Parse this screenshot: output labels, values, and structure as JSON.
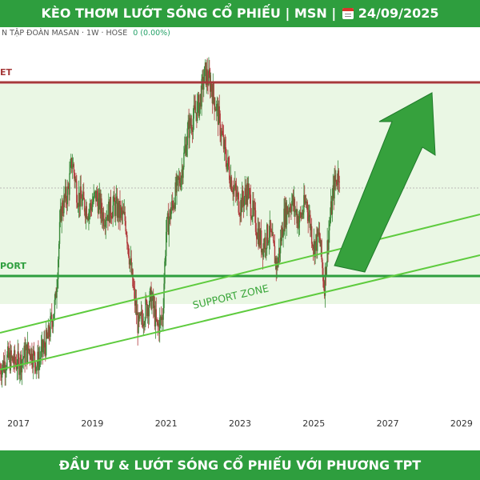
{
  "header": {
    "title": "KÈO THƠM LƯỚT SÓNG CỔ PHIẾU | MSN |",
    "date": "24/09/2025"
  },
  "symbol_info": {
    "name": "N TẬP ĐOÀN MASAN · 1W · HOSE",
    "change": "0 (0.00%)"
  },
  "footer": {
    "slogan": "ĐẦU TƯ & LƯỚT SÓNG CỔ PHIẾU VỚI PHƯƠNG TPT"
  },
  "colors": {
    "banner": "#2e9e3e",
    "zone_fill": "#eaf7e4",
    "resistance": "#a63a3a",
    "support": "#2e9e3e",
    "channel": "#5ecb3e",
    "arrow": "#36a13d",
    "candle_up": "#3a8a3a",
    "candle_down": "#b0393b"
  },
  "chart_data": {
    "type": "candlestick",
    "instrument": "MSN",
    "timeframe": "1W",
    "x_ticks": [
      "2017",
      "2019",
      "2021",
      "2023",
      "2025",
      "2027",
      "2029"
    ],
    "x_range": [
      2016.5,
      2029.5
    ],
    "y_range": [
      30,
      180
    ],
    "price_path": [
      [
        2016.5,
        46
      ],
      [
        2016.7,
        50
      ],
      [
        2017.0,
        48
      ],
      [
        2017.3,
        54
      ],
      [
        2017.5,
        48
      ],
      [
        2017.8,
        58
      ],
      [
        2018.0,
        72
      ],
      [
        2018.15,
        108
      ],
      [
        2018.35,
        116
      ],
      [
        2018.45,
        128
      ],
      [
        2018.6,
        114
      ],
      [
        2018.9,
        108
      ],
      [
        2019.1,
        114
      ],
      [
        2019.3,
        106
      ],
      [
        2019.6,
        110
      ],
      [
        2019.9,
        104
      ],
      [
        2020.1,
        78
      ],
      [
        2020.25,
        62
      ],
      [
        2020.4,
        68
      ],
      [
        2020.6,
        74
      ],
      [
        2020.75,
        62
      ],
      [
        2020.9,
        66
      ],
      [
        2021.0,
        100
      ],
      [
        2021.2,
        112
      ],
      [
        2021.4,
        122
      ],
      [
        2021.6,
        140
      ],
      [
        2021.9,
        150
      ],
      [
        2022.05,
        162
      ],
      [
        2022.2,
        158
      ],
      [
        2022.4,
        146
      ],
      [
        2022.6,
        130
      ],
      [
        2022.8,
        118
      ],
      [
        2023.0,
        110
      ],
      [
        2023.2,
        116
      ],
      [
        2023.4,
        104
      ],
      [
        2023.6,
        94
      ],
      [
        2023.8,
        100
      ],
      [
        2024.0,
        86
      ],
      [
        2024.2,
        106
      ],
      [
        2024.4,
        112
      ],
      [
        2024.6,
        104
      ],
      [
        2024.8,
        112
      ],
      [
        2025.0,
        94
      ],
      [
        2025.15,
        98
      ],
      [
        2025.28,
        78
      ],
      [
        2025.4,
        100
      ],
      [
        2025.55,
        118
      ],
      [
        2025.7,
        124
      ]
    ],
    "lines": {
      "resistance_label": "ET",
      "support_label": "PORT",
      "zone_label": "SUPPORT ZONE"
    }
  }
}
